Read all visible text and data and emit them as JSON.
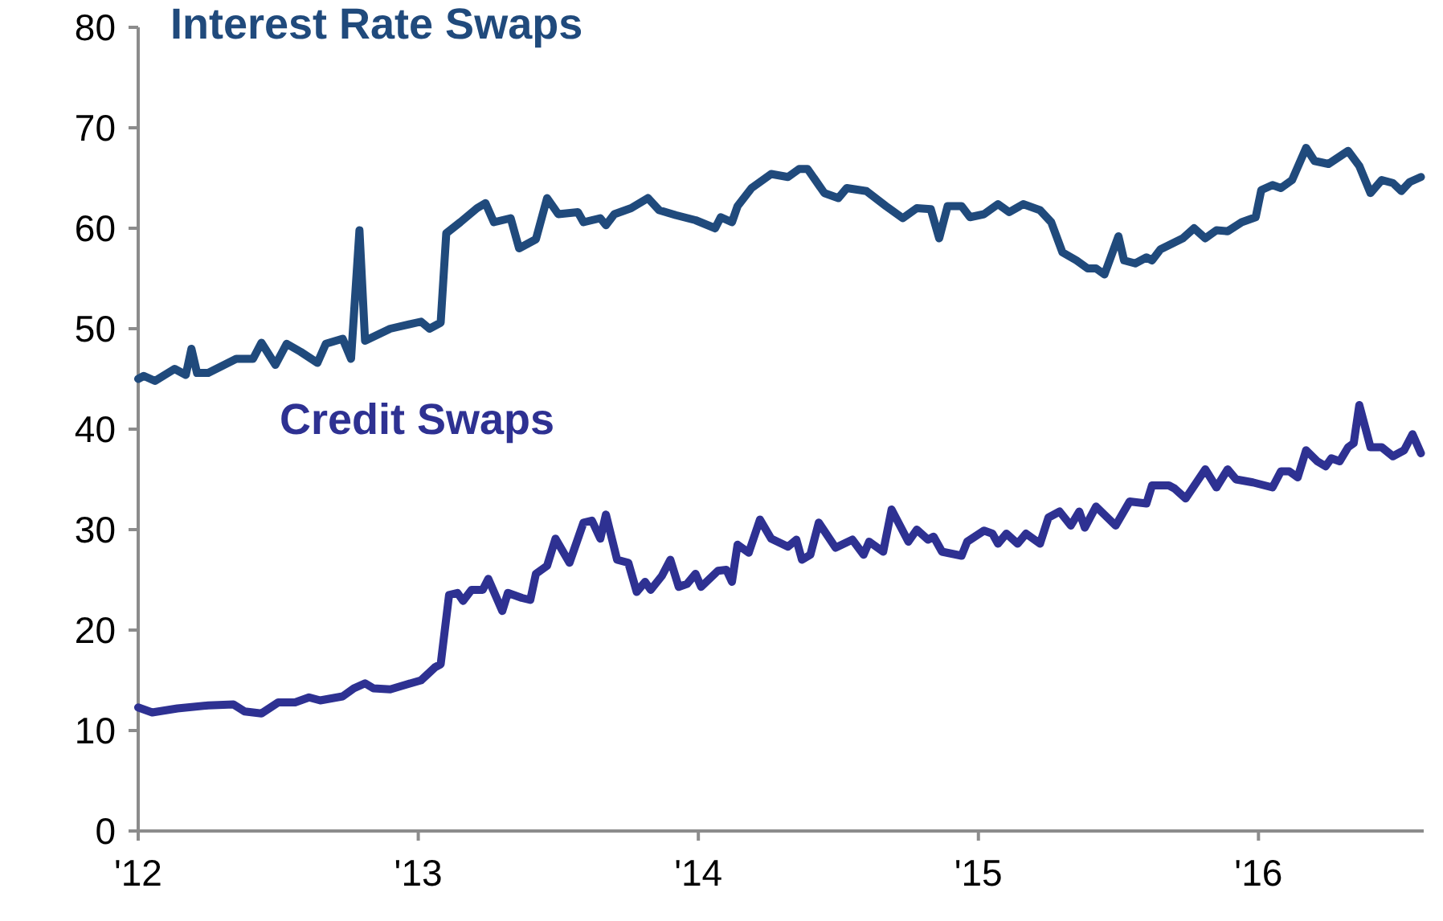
{
  "chart_data": {
    "type": "line",
    "xlim": [
      2012,
      2016.59
    ],
    "xticks": [
      {
        "value": 2012,
        "label": "'12"
      },
      {
        "value": 2013,
        "label": "'13"
      },
      {
        "value": 2014,
        "label": "'14"
      },
      {
        "value": 2015,
        "label": "'15"
      },
      {
        "value": 2016,
        "label": "'16"
      }
    ],
    "ylim": [
      0,
      80
    ],
    "yticks": [
      0,
      10,
      20,
      30,
      40,
      50,
      60,
      70,
      80
    ],
    "grid": false,
    "legend": false,
    "marker": "none",
    "line_style": "solid",
    "series": [
      {
        "name": "Interest Rate Swaps",
        "color": "#204a7c",
        "x": [
          2012,
          2012.02,
          2012.06,
          2012.13,
          2012.17,
          2012.19,
          2012.21,
          2012.25,
          2012.35,
          2012.41,
          2012.44,
          2012.49,
          2012.53,
          2012.58,
          2012.64,
          2012.67,
          2012.73,
          2012.76,
          2012.79,
          2012.81,
          2012.9,
          2013.01,
          2013.04,
          2013.08,
          2013.1,
          2013.15,
          2013.21,
          2013.24,
          2013.27,
          2013.33,
          2013.36,
          2013.42,
          2013.46,
          2013.5,
          2013.57,
          2013.59,
          2013.65,
          2013.67,
          2013.7,
          2013.76,
          2013.82,
          2013.86,
          2013.92,
          2013.99,
          2014.06,
          2014.08,
          2014.12,
          2014.14,
          2014.19,
          2014.26,
          2014.32,
          2014.36,
          2014.39,
          2014.45,
          2014.5,
          2014.53,
          2014.6,
          2014.67,
          2014.73,
          2014.78,
          2014.83,
          2014.86,
          2014.89,
          2014.94,
          2014.97,
          2015.02,
          2015.07,
          2015.11,
          2015.16,
          2015.22,
          2015.26,
          2015.3,
          2015.35,
          2015.39,
          2015.42,
          2015.45,
          2015.5,
          2015.52,
          2015.56,
          2015.6,
          2015.62,
          2015.65,
          2015.73,
          2015.77,
          2015.81,
          2015.85,
          2015.89,
          2015.94,
          2015.99,
          2016.01,
          2016.05,
          2016.08,
          2016.12,
          2016.17,
          2016.2,
          2016.25,
          2016.32,
          2016.36,
          2016.4,
          2016.44,
          2016.48,
          2016.51,
          2016.54,
          2016.58
        ],
        "values": [
          45,
          45.3,
          44.8,
          46,
          45.4,
          48,
          45.6,
          45.6,
          47,
          47,
          48.6,
          46.4,
          48.5,
          47.7,
          46.6,
          48.5,
          49,
          47,
          59.8,
          48.8,
          50,
          50.7,
          50,
          50.6,
          59.5,
          60.6,
          62,
          62.5,
          60.6,
          61,
          58,
          58.9,
          63,
          61.4,
          61.6,
          60.6,
          61,
          60.3,
          61.4,
          62,
          63,
          61.8,
          61.3,
          60.8,
          60,
          61.1,
          60.6,
          62.2,
          64,
          65.4,
          65.1,
          65.9,
          65.9,
          63.5,
          63,
          64,
          63.7,
          62.2,
          61,
          62,
          61.9,
          59,
          62.2,
          62.2,
          61.1,
          61.4,
          62.4,
          61.6,
          62.4,
          61.8,
          60.6,
          57.6,
          56.8,
          56,
          56,
          55.4,
          59.2,
          56.8,
          56.5,
          57.1,
          56.8,
          57.9,
          59,
          60,
          59,
          59.8,
          59.7,
          60.6,
          61.1,
          63.8,
          64.3,
          64,
          64.8,
          68,
          66.7,
          66.4,
          67.7,
          66.2,
          63.5,
          64.8,
          64.5,
          63.7,
          64.6,
          65.1
        ]
      },
      {
        "name": "Credit Swaps",
        "color": "#2e3192",
        "x": [
          2012,
          2012.05,
          2012.14,
          2012.25,
          2012.34,
          2012.38,
          2012.44,
          2012.5,
          2012.56,
          2012.61,
          2012.65,
          2012.73,
          2012.77,
          2012.81,
          2012.84,
          2012.9,
          2012.96,
          2013.01,
          2013.06,
          2013.08,
          2013.11,
          2013.14,
          2013.16,
          2013.19,
          2013.23,
          2013.25,
          2013.3,
          2013.32,
          2013.37,
          2013.4,
          2013.42,
          2013.46,
          2013.49,
          2013.54,
          2013.59,
          2013.62,
          2013.65,
          2013.67,
          2013.71,
          2013.75,
          2013.78,
          2013.81,
          2013.83,
          2013.87,
          2013.9,
          2013.93,
          2013.96,
          2013.99,
          2014.01,
          2014.07,
          2014.1,
          2014.12,
          2014.14,
          2014.18,
          2014.22,
          2014.26,
          2014.32,
          2014.35,
          2014.37,
          2014.4,
          2014.43,
          2014.49,
          2014.55,
          2014.59,
          2014.61,
          2014.66,
          2014.69,
          2014.75,
          2014.78,
          2014.82,
          2014.84,
          2014.87,
          2014.94,
          2014.96,
          2015.02,
          2015.05,
          2015.07,
          2015.1,
          2015.14,
          2015.17,
          2015.22,
          2015.25,
          2015.29,
          2015.33,
          2015.36,
          2015.38,
          2015.42,
          2015.49,
          2015.54,
          2015.6,
          2015.62,
          2015.68,
          2015.7,
          2015.74,
          2015.81,
          2015.85,
          2015.89,
          2015.92,
          2015.98,
          2016.05,
          2016.08,
          2016.11,
          2016.14,
          2016.17,
          2016.21,
          2016.24,
          2016.26,
          2016.29,
          2016.32,
          2016.34,
          2016.36,
          2016.4,
          2016.44,
          2016.48,
          2016.52,
          2016.55,
          2016.58
        ],
        "values": [
          12.3,
          11.8,
          12.2,
          12.5,
          12.6,
          11.9,
          11.7,
          12.8,
          12.8,
          13.3,
          13,
          13.4,
          14.2,
          14.7,
          14.2,
          14.1,
          14.6,
          15,
          16.3,
          16.6,
          23.5,
          23.7,
          22.9,
          24,
          24,
          25.1,
          21.9,
          23.7,
          23.2,
          23,
          25.6,
          26.4,
          29.1,
          26.7,
          30.7,
          30.9,
          29.1,
          31.5,
          27,
          26.7,
          23.8,
          24.8,
          24,
          25.4,
          27,
          24.3,
          24.6,
          25.6,
          24.3,
          25.9,
          26,
          24.8,
          28.5,
          27.7,
          31,
          29.1,
          28.3,
          29,
          27,
          27.5,
          30.7,
          28.2,
          29,
          27.5,
          28.8,
          27.8,
          32,
          28.8,
          30,
          29,
          29.3,
          27.8,
          27.4,
          28.8,
          29.9,
          29.6,
          28.6,
          29.6,
          28.6,
          29.6,
          28.6,
          31.2,
          31.8,
          30.4,
          31.8,
          30.2,
          32.3,
          30.4,
          32.8,
          32.6,
          34.4,
          34.4,
          34.1,
          33.1,
          36,
          34.2,
          36,
          35,
          34.7,
          34.2,
          35.8,
          35.8,
          35.2,
          37.9,
          36.8,
          36.3,
          37.1,
          36.8,
          38.2,
          38.6,
          42.4,
          38.2,
          38.2,
          37.3,
          37.9,
          39.5,
          37.6
        ]
      }
    ]
  }
}
